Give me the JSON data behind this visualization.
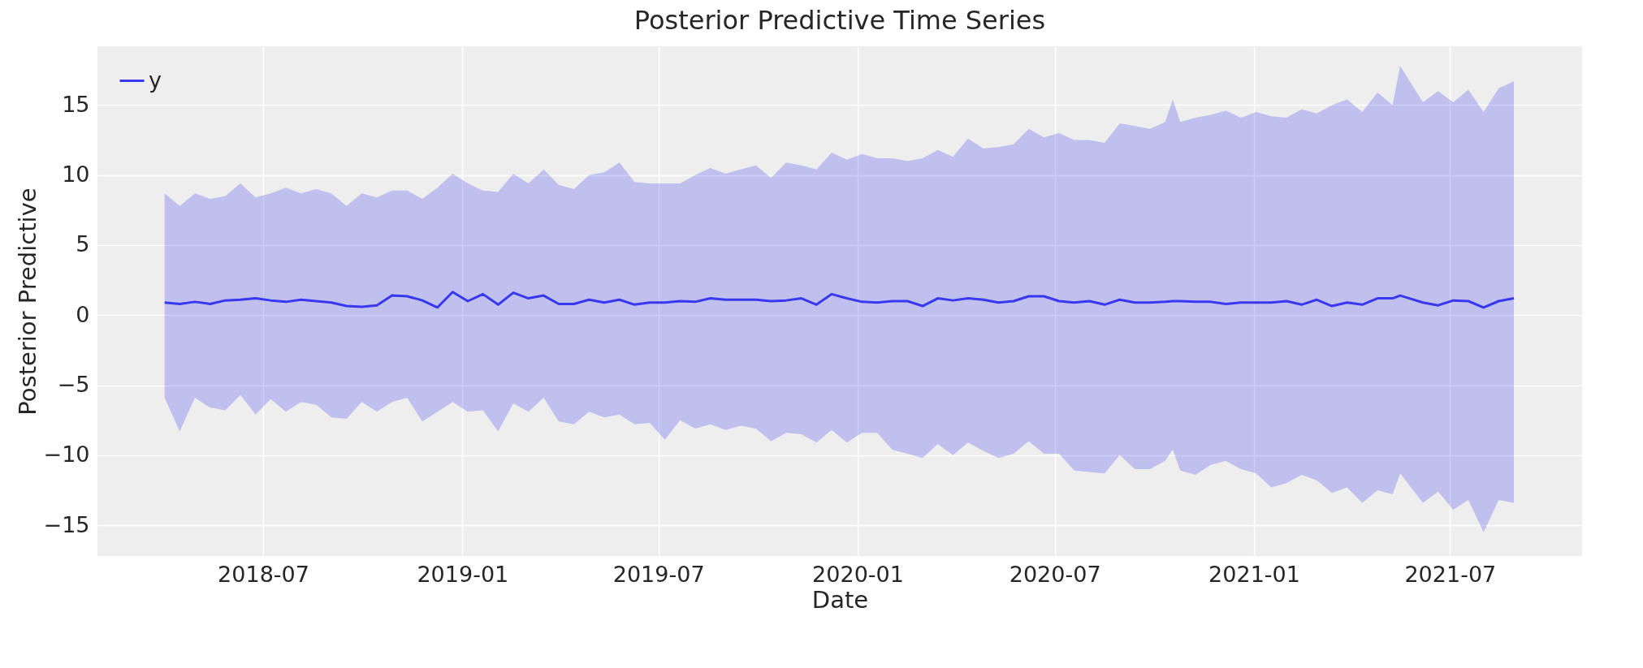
{
  "chart_data": {
    "type": "line",
    "title": "Posterior Predictive Time Series",
    "xlabel": "Date",
    "ylabel": "Posterior Predictive",
    "x": [
      "2018-04-01",
      "2018-04-15",
      "2018-04-29",
      "2018-05-13",
      "2018-05-27",
      "2018-06-10",
      "2018-06-24",
      "2018-07-08",
      "2018-07-22",
      "2018-08-05",
      "2018-08-19",
      "2018-09-02",
      "2018-09-16",
      "2018-09-30",
      "2018-10-14",
      "2018-10-28",
      "2018-11-11",
      "2018-11-25",
      "2018-12-09",
      "2018-12-23",
      "2019-01-06",
      "2019-01-20",
      "2019-02-03",
      "2019-02-17",
      "2019-03-03",
      "2019-03-17",
      "2019-03-31",
      "2019-04-14",
      "2019-04-28",
      "2019-05-12",
      "2019-05-26",
      "2019-06-09",
      "2019-06-23",
      "2019-07-07",
      "2019-07-21",
      "2019-08-04",
      "2019-08-18",
      "2019-09-01",
      "2019-09-15",
      "2019-09-29",
      "2019-10-13",
      "2019-10-27",
      "2019-11-10",
      "2019-11-24",
      "2019-12-08",
      "2019-12-22",
      "2020-01-05",
      "2020-01-19",
      "2020-02-02",
      "2020-02-16",
      "2020-03-01",
      "2020-03-15",
      "2020-03-29",
      "2020-04-12",
      "2020-04-26",
      "2020-05-10",
      "2020-05-24",
      "2020-06-07",
      "2020-06-21",
      "2020-07-05",
      "2020-07-19",
      "2020-08-02",
      "2020-08-16",
      "2020-08-30",
      "2020-09-13",
      "2020-09-27",
      "2020-10-11",
      "2020-10-18",
      "2020-10-25",
      "2020-11-08",
      "2020-11-22",
      "2020-12-06",
      "2020-12-20",
      "2021-01-03",
      "2021-01-17",
      "2021-01-31",
      "2021-02-14",
      "2021-02-28",
      "2021-03-14",
      "2021-03-28",
      "2021-04-11",
      "2021-04-25",
      "2021-05-09",
      "2021-05-16",
      "2021-06-06",
      "2021-06-20",
      "2021-07-04",
      "2021-07-18",
      "2021-08-01",
      "2021-08-15",
      "2021-08-29"
    ],
    "series": [
      {
        "name": "y",
        "color": "#3838f0",
        "values": [
          0.9,
          0.8,
          0.95,
          0.8,
          1.05,
          1.1,
          1.2,
          1.05,
          0.95,
          1.1,
          1.0,
          0.9,
          0.65,
          0.6,
          0.7,
          1.4,
          1.35,
          1.05,
          0.55,
          1.65,
          1.0,
          1.5,
          0.75,
          1.6,
          1.2,
          1.4,
          0.8,
          0.8,
          1.1,
          0.9,
          1.1,
          0.75,
          0.9,
          0.9,
          1.0,
          0.95,
          1.2,
          1.1,
          1.1,
          1.1,
          1.0,
          1.05,
          1.2,
          0.75,
          1.5,
          1.2,
          0.95,
          0.9,
          1.0,
          1.0,
          0.65,
          1.2,
          1.05,
          1.2,
          1.1,
          0.9,
          1.0,
          1.35,
          1.35,
          1.0,
          0.9,
          1.0,
          0.75,
          1.1,
          0.9,
          0.9,
          0.95,
          1.0,
          1.0,
          0.95,
          0.95,
          0.8,
          0.9,
          0.9,
          0.9,
          1.0,
          0.75,
          1.1,
          0.65,
          0.9,
          0.75,
          1.2,
          1.2,
          1.4,
          0.9,
          0.7,
          1.05,
          1.0,
          0.55,
          1.0,
          1.2
        ],
        "upper": [
          8.7,
          7.8,
          8.7,
          8.3,
          8.5,
          9.4,
          8.4,
          8.7,
          9.1,
          8.7,
          9.0,
          8.7,
          7.8,
          8.7,
          8.4,
          8.9,
          8.9,
          8.3,
          9.1,
          10.1,
          9.4,
          8.9,
          8.8,
          10.1,
          9.4,
          10.4,
          9.3,
          9.0,
          10.0,
          10.2,
          10.9,
          9.5,
          9.4,
          9.4,
          9.4,
          10.0,
          10.5,
          10.1,
          10.4,
          10.7,
          9.8,
          10.9,
          10.7,
          10.4,
          11.6,
          11.1,
          11.5,
          11.2,
          11.2,
          11.0,
          11.2,
          11.8,
          11.3,
          12.6,
          11.9,
          12.0,
          12.2,
          13.3,
          12.7,
          13.0,
          12.5,
          12.5,
          12.3,
          13.7,
          13.5,
          13.3,
          13.8,
          15.4,
          13.8,
          14.1,
          14.3,
          14.6,
          14.1,
          14.5,
          14.2,
          14.1,
          14.7,
          14.4,
          15.0,
          15.4,
          14.5,
          15.9,
          15.0,
          17.8,
          15.2,
          16.0,
          15.2,
          16.1,
          14.5,
          16.2,
          16.7
        ],
        "lower": [
          -5.9,
          -8.3,
          -5.9,
          -6.6,
          -6.8,
          -5.7,
          -7.1,
          -6.0,
          -6.9,
          -6.2,
          -6.4,
          -7.3,
          -7.4,
          -6.2,
          -6.9,
          -6.2,
          -5.9,
          -7.6,
          -6.9,
          -6.2,
          -6.9,
          -6.8,
          -8.3,
          -6.3,
          -6.9,
          -5.9,
          -7.6,
          -7.8,
          -6.9,
          -7.3,
          -7.1,
          -7.8,
          -7.7,
          -8.9,
          -7.5,
          -8.1,
          -7.8,
          -8.2,
          -7.9,
          -8.1,
          -9.0,
          -8.4,
          -8.5,
          -9.1,
          -8.2,
          -9.1,
          -8.4,
          -8.4,
          -9.6,
          -9.9,
          -10.2,
          -9.2,
          -10.0,
          -9.1,
          -9.7,
          -10.2,
          -9.9,
          -9.0,
          -9.9,
          -9.9,
          -11.1,
          -11.2,
          -11.3,
          -10.0,
          -11.0,
          -11.0,
          -10.4,
          -9.6,
          -11.1,
          -11.4,
          -10.7,
          -10.4,
          -11.0,
          -11.3,
          -12.3,
          -12.0,
          -11.4,
          -11.8,
          -12.7,
          -12.3,
          -13.4,
          -12.5,
          -12.8,
          -11.3,
          -13.4,
          -12.6,
          -13.9,
          -13.2,
          -15.5,
          -13.2,
          -13.4
        ]
      }
    ],
    "xlim": [
      "2018-01-29",
      "2021-10-31"
    ],
    "xticks": [
      {
        "value": "2018-07-01",
        "label": "2018-07"
      },
      {
        "value": "2019-01-01",
        "label": "2019-01"
      },
      {
        "value": "2019-07-01",
        "label": "2019-07"
      },
      {
        "value": "2020-01-01",
        "label": "2020-01"
      },
      {
        "value": "2020-07-01",
        "label": "2020-07"
      },
      {
        "value": "2021-01-01",
        "label": "2021-01"
      },
      {
        "value": "2021-07-01",
        "label": "2021-07"
      }
    ],
    "ylim": [
      -17.2,
      19.2
    ],
    "yticks": [
      {
        "value": -15,
        "label": "−15"
      },
      {
        "value": -10,
        "label": "−10"
      },
      {
        "value": -5,
        "label": "−5"
      },
      {
        "value": 0,
        "label": "0"
      },
      {
        "value": 5,
        "label": "5"
      },
      {
        "value": 10,
        "label": "10"
      },
      {
        "value": 15,
        "label": "15"
      }
    ],
    "grid": true,
    "legend": "top left",
    "marker": "none",
    "line_style": "solid"
  }
}
